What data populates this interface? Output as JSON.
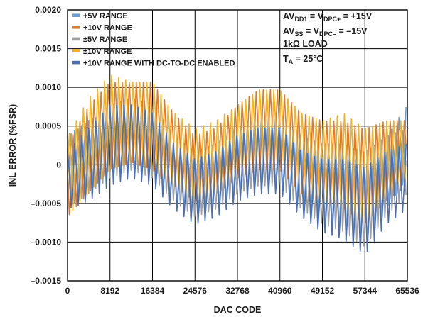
{
  "chart_data": {
    "type": "line",
    "xlabel": "DAC CODE",
    "ylabel": "INL ERROR (%FSR)",
    "xlim": [
      0,
      65536
    ],
    "ylim": [
      -0.0015,
      0.002
    ],
    "x_ticks": [
      0,
      8192,
      16384,
      24576,
      32768,
      40960,
      49152,
      57344,
      65536
    ],
    "x_tick_labels": [
      "0",
      "8192",
      "16384",
      "24576",
      "32768",
      "40960",
      "49152",
      "57344",
      "65536"
    ],
    "y_ticks": [
      -0.0015,
      -0.001,
      -0.0005,
      0,
      0.0005,
      0.001,
      0.0015,
      0.002
    ],
    "y_tick_labels": [
      "–0.0015",
      "–0.0010",
      "–0.0005",
      "0",
      "0.0005",
      "0.0010",
      "0.0015",
      "0.0020"
    ],
    "grid": true,
    "legend_position": "top-left",
    "conditions": [
      {
        "parts": [
          {
            "t": "AV"
          },
          {
            "t": "DD1",
            "sub": true
          },
          {
            "t": " = V"
          },
          {
            "t": "DPC+",
            "sub": true
          },
          {
            "t": " = +15V"
          }
        ]
      },
      {
        "parts": [
          {
            "t": "AV"
          },
          {
            "t": "SS",
            "sub": true
          },
          {
            "t": " = V"
          },
          {
            "t": "DPC–",
            "sub": true
          },
          {
            "t": " = –15V"
          }
        ]
      },
      {
        "parts": [
          {
            "t": "1kΩ LOAD"
          }
        ]
      },
      {
        "parts": [
          {
            "t": "T"
          },
          {
            "t": "A",
            "sub": true
          },
          {
            "t": " = 25°C"
          }
        ]
      }
    ],
    "series": [
      {
        "name": "+5V RANGE",
        "color": "#6a9fd0",
        "envelope_x": [
          0,
          4096,
          8192,
          12288,
          16384,
          20480,
          24576,
          28672,
          32768,
          36864,
          40960,
          45056,
          49152,
          53248,
          57344,
          61440,
          65536
        ],
        "upper": [
          0.0004,
          0.0006,
          0.0007,
          0.0008,
          0.0007,
          0.0003,
          0.0002,
          0.0003,
          0.0005,
          0.0006,
          0.0006,
          0.0004,
          0.0003,
          0.0003,
          0.0002,
          0.0004,
          0.0008
        ],
        "lower": [
          -0.0005,
          -0.0003,
          -0.0002,
          -0.0001,
          -0.0002,
          -0.0005,
          -0.0007,
          -0.0006,
          -0.0004,
          -0.0003,
          -0.0003,
          -0.0006,
          -0.0008,
          -0.0009,
          -0.0011,
          -0.0006,
          -0.0002
        ]
      },
      {
        "name": "+10V RANGE",
        "color": "#e07b2e",
        "envelope_x": [
          0,
          4096,
          8192,
          12288,
          16384,
          20480,
          24576,
          28672,
          32768,
          36864,
          40960,
          45056,
          49152,
          53248,
          57344,
          61440,
          65536
        ],
        "upper": [
          0.0003,
          0.0008,
          0.0011,
          0.0011,
          0.0011,
          0.0007,
          0.0004,
          0.0005,
          0.0008,
          0.001,
          0.001,
          0.0007,
          0.0006,
          0.0006,
          0.0005,
          0.0006,
          0.0006
        ],
        "lower": [
          -0.0007,
          -0.0004,
          -0.0001,
          0.0,
          -0.0001,
          -0.0003,
          -0.0005,
          -0.0004,
          -0.0002,
          -0.0001,
          -0.0001,
          -0.0004,
          -0.0005,
          -0.0006,
          -0.0008,
          -0.0005,
          -0.0003
        ]
      },
      {
        "name": "±5V RANGE",
        "color": "#a0a0a0",
        "envelope_x": [
          0,
          4096,
          8192,
          12288,
          16384,
          20480,
          24576,
          28672,
          32768,
          36864,
          40960,
          45056,
          49152,
          53248,
          57344,
          61440,
          65536
        ],
        "upper": [
          0.0004,
          0.0006,
          0.0008,
          0.0009,
          0.0008,
          0.0004,
          0.0002,
          0.0003,
          0.0005,
          0.0007,
          0.0007,
          0.0004,
          0.0003,
          0.0003,
          0.0002,
          0.0004,
          0.0005
        ],
        "lower": [
          -0.0006,
          -0.0004,
          -0.0002,
          -0.0001,
          -0.0002,
          -0.0005,
          -0.0007,
          -0.0006,
          -0.0004,
          -0.0003,
          -0.0003,
          -0.0006,
          -0.0008,
          -0.0009,
          -0.0011,
          -0.0007,
          -0.0004
        ]
      },
      {
        "name": "±10V RANGE",
        "color": "#f5b31c",
        "envelope_x": [
          0,
          4096,
          8192,
          12288,
          16384,
          20480,
          24576,
          28672,
          32768,
          36864,
          40960,
          45056,
          49152,
          53248,
          57344,
          61440,
          65536
        ],
        "upper": [
          0.0004,
          0.0009,
          0.0012,
          0.0011,
          0.0011,
          0.0007,
          0.0005,
          0.0006,
          0.0008,
          0.001,
          0.001,
          0.0007,
          0.0006,
          0.0007,
          0.0005,
          0.0006,
          0.0006
        ],
        "lower": [
          -0.0007,
          -0.0004,
          -0.0001,
          0.0,
          -0.0001,
          -0.0003,
          -0.0005,
          -0.0004,
          -0.0002,
          -0.0001,
          -0.0001,
          -0.0003,
          -0.0005,
          -0.0006,
          -0.0008,
          -0.0005,
          -0.0003
        ]
      },
      {
        "name": "+10V RANGE WITH DC-TO-DC ENABLED",
        "color": "#4a6fb5",
        "envelope_x": [
          0,
          4096,
          8192,
          12288,
          16384,
          20480,
          24576,
          28672,
          32768,
          36864,
          40960,
          45056,
          49152,
          53248,
          57344,
          61440,
          65536
        ],
        "upper": [
          0.0002,
          0.0005,
          0.0008,
          0.0008,
          0.0007,
          0.0003,
          0.0001,
          0.0002,
          0.0004,
          0.0005,
          0.0005,
          0.0002,
          0.0001,
          0.0001,
          0.0,
          0.0002,
          0.0003
        ],
        "lower": [
          -0.0006,
          -0.0005,
          -0.0003,
          -0.0002,
          -0.0003,
          -0.0006,
          -0.0008,
          -0.0007,
          -0.0005,
          -0.0004,
          -0.0004,
          -0.0007,
          -0.0009,
          -0.001,
          -0.0012,
          -0.0008,
          -0.0006
        ]
      }
    ]
  }
}
